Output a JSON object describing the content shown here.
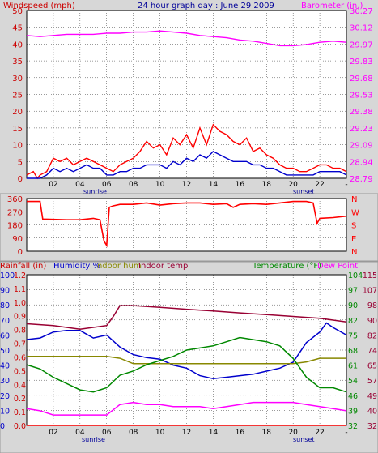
{
  "header": {
    "title": "24 hour graph day : June 29 2009",
    "left_label": "Windspeed (mph)",
    "right_label": "Barometer (in.)"
  },
  "colors": {
    "background": "#d7d7d7",
    "plot_bg": "#ffffff",
    "wind": "#ff0000",
    "gust": "#ff0000",
    "avg_wind": "#0000cc",
    "barometer": "#ff00ff",
    "direction": "#ff0000",
    "rain": "#ff0000",
    "humidity": "#0000cc",
    "indoor_hum": "#888800",
    "indoor_temp": "#990033",
    "temperature": "#008800",
    "dew_point": "#ff00ff",
    "left_text": "#cc0000",
    "blue_text": "#0000cc"
  },
  "hour_labels": [
    "02",
    "04",
    "06",
    "08",
    "10",
    "12",
    "14",
    "16",
    "18",
    "20",
    "22",
    "-"
  ],
  "sunrise_label": "sunrise",
  "sunset_label": "sunset",
  "labels3": {
    "rainfall": "Rainfall (in)",
    "humidity": "Humidity %",
    "indoor_hum": "Indoor hum",
    "indoor_temp": "Indoor temp",
    "temperature": "Temperature (°F)",
    "dew_point": "Dew Point"
  },
  "chart_data": [
    {
      "type": "line",
      "xlabel": "",
      "x_unit": "hour",
      "xlim": [
        0,
        24
      ],
      "left_axis": {
        "label": "Windspeed (mph)",
        "ylim": [
          0,
          50
        ],
        "ticks": [
          0,
          5,
          10,
          15,
          20,
          25,
          30,
          35,
          40,
          45,
          50
        ]
      },
      "right_axis": {
        "label": "Barometer (in.)",
        "ylim": [
          28.79,
          30.27
        ],
        "ticks": [
          "28.79",
          "28.94",
          "29.09",
          "29.23",
          "29.38",
          "29.53",
          "29.68",
          "29.83",
          "29.97",
          "30.12",
          "30.27"
        ]
      },
      "series": [
        {
          "name": "Windspeed (mph)",
          "axis": "left",
          "x": [
            0,
            0.5,
            0.8,
            1,
            1.5,
            2,
            2.5,
            3,
            3.5,
            4,
            4.5,
            5,
            5.5,
            6,
            6.5,
            7,
            7.5,
            8,
            8.5,
            9,
            9.5,
            10,
            10.5,
            11,
            11.5,
            12,
            12.5,
            13,
            13.5,
            14,
            14.5,
            15,
            15.5,
            16,
            16.5,
            17,
            17.5,
            18,
            18.5,
            19,
            19.5,
            20,
            20.5,
            21,
            21.5,
            22,
            22.5,
            23,
            23.5,
            24
          ],
          "y": [
            1,
            2,
            0,
            1,
            2,
            6,
            5,
            6,
            4,
            5,
            6,
            5,
            4,
            3,
            2,
            4,
            5,
            6,
            8,
            11,
            9,
            10,
            7,
            12,
            10,
            13,
            9,
            15,
            10,
            16,
            14,
            13,
            11,
            10,
            12,
            8,
            9,
            7,
            6,
            4,
            3,
            3,
            2,
            2,
            3,
            4,
            4,
            3,
            3,
            2
          ]
        },
        {
          "name": "Avg wind",
          "axis": "left",
          "x": [
            0,
            0.5,
            1,
            1.5,
            2,
            2.5,
            3,
            3.5,
            4,
            4.5,
            5,
            5.5,
            6,
            6.5,
            7,
            7.5,
            8,
            8.5,
            9,
            9.5,
            10,
            10.5,
            11,
            11.5,
            12,
            12.5,
            13,
            13.5,
            14,
            14.5,
            15,
            15.5,
            16,
            16.5,
            17,
            17.5,
            18,
            18.5,
            19,
            19.5,
            20,
            20.5,
            21,
            21.5,
            22,
            22.5,
            23,
            23.5,
            24
          ],
          "y": [
            0,
            0,
            0,
            1,
            3,
            2,
            3,
            2,
            3,
            4,
            3,
            3,
            1,
            1,
            2,
            2,
            3,
            3,
            4,
            4,
            4,
            3,
            5,
            4,
            6,
            5,
            7,
            6,
            8,
            7,
            6,
            5,
            5,
            5,
            4,
            4,
            3,
            3,
            2,
            1,
            1,
            1,
            1,
            1,
            2,
            2,
            2,
            2,
            1
          ]
        },
        {
          "name": "Barometer (in.)",
          "axis": "right",
          "x": [
            0,
            1,
            2,
            3,
            4,
            5,
            6,
            7,
            8,
            9,
            10,
            11,
            12,
            13,
            14,
            15,
            16,
            17,
            18,
            19,
            20,
            21,
            22,
            23,
            24
          ],
          "y": [
            30.05,
            30.04,
            30.05,
            30.06,
            30.06,
            30.06,
            30.07,
            30.07,
            30.08,
            30.08,
            30.09,
            30.08,
            30.07,
            30.05,
            30.04,
            30.03,
            30.01,
            30.0,
            29.98,
            29.96,
            29.96,
            29.97,
            29.99,
            30.0,
            29.99
          ]
        }
      ]
    },
    {
      "type": "line",
      "xlabel": "",
      "xlim": [
        0,
        24
      ],
      "left_axis": {
        "ylim": [
          0,
          360
        ],
        "ticks": [
          0,
          90,
          180,
          270,
          360
        ]
      },
      "right_axis": {
        "ticks": [
          "N",
          "E",
          "S",
          "W",
          "N"
        ]
      },
      "series": [
        {
          "name": "Wind direction",
          "x": [
            0,
            1,
            1.2,
            3,
            4,
            5,
            5.5,
            5.8,
            6,
            6.2,
            6.5,
            7,
            8,
            9,
            10,
            11,
            12,
            13,
            14,
            15,
            15.5,
            16,
            17,
            18,
            19,
            20,
            21,
            21.5,
            21.8,
            22,
            23,
            24
          ],
          "y": [
            340,
            340,
            220,
            215,
            215,
            225,
            215,
            70,
            40,
            300,
            310,
            320,
            320,
            330,
            315,
            325,
            330,
            330,
            320,
            325,
            300,
            320,
            325,
            320,
            330,
            340,
            340,
            330,
            190,
            225,
            230,
            240
          ]
        }
      ]
    },
    {
      "type": "line",
      "xlabel": "",
      "xlim": [
        0,
        24
      ],
      "axes": {
        "rainfall": {
          "label": "Rainfall (in)",
          "ylim": [
            0,
            1.2
          ],
          "ticks": [
            "0.0",
            "0.1",
            "0.2",
            "0.4",
            "0.5",
            "0.6",
            "0.7",
            "0.8",
            "0.9",
            "1.0",
            "1.1",
            "1.2"
          ]
        },
        "humidity": {
          "label": "Humidity %",
          "ylim": [
            0,
            100
          ],
          "ticks": [
            0,
            10,
            20,
            30,
            40,
            50,
            60,
            70,
            80,
            90,
            100
          ]
        },
        "indoor": {
          "ticks": [
            32,
            40,
            49,
            57,
            65,
            74,
            82,
            90,
            98,
            107,
            115
          ]
        },
        "temperature": {
          "label": "Temperature (°F)",
          "ylim": [
            32,
            104
          ],
          "ticks": [
            32,
            39,
            46,
            54,
            61,
            68,
            75,
            82,
            90,
            97,
            104
          ]
        }
      },
      "series": [
        {
          "name": "Humidity %",
          "axis": "humidity",
          "x": [
            0,
            1,
            2,
            3,
            4,
            5,
            6,
            7,
            8,
            9,
            10,
            11,
            12,
            13,
            14,
            15,
            16,
            17,
            18,
            19,
            20,
            21,
            22,
            22.5,
            23,
            24
          ],
          "y": [
            57,
            58,
            62,
            63,
            63,
            58,
            60,
            52,
            47,
            45,
            44,
            40,
            38,
            33,
            31,
            32,
            33,
            34,
            36,
            38,
            42,
            55,
            62,
            68,
            65,
            60
          ]
        },
        {
          "name": "Indoor hum",
          "axis": "indoor",
          "x": [
            0,
            2,
            4,
            6,
            7,
            8,
            10,
            12,
            14,
            16,
            18,
            20,
            21,
            22,
            24
          ],
          "y": [
            70,
            70,
            70,
            70,
            69,
            66,
            66,
            66,
            66,
            66,
            66,
            66,
            67,
            69,
            69
          ]
        },
        {
          "name": "Indoor temp",
          "axis": "indoor",
          "x": [
            0,
            2,
            4,
            6,
            6.5,
            7,
            8,
            10,
            12,
            14,
            16,
            18,
            20,
            22,
            24
          ],
          "y": [
            88,
            87,
            85,
            87,
            92,
            98,
            98,
            97,
            96,
            95,
            94,
            93,
            92,
            91,
            89
          ]
        },
        {
          "name": "Temperature (°F)",
          "axis": "temperature",
          "x": [
            0,
            1,
            2,
            3,
            4,
            5,
            6,
            7,
            8,
            9,
            10,
            11,
            12,
            13,
            14,
            15,
            16,
            17,
            18,
            19,
            20,
            21,
            22,
            23,
            24
          ],
          "y": [
            61,
            59,
            55,
            52,
            49,
            48,
            50,
            56,
            58,
            61,
            63,
            65,
            68,
            69,
            70,
            72,
            74,
            73,
            72,
            70,
            64,
            55,
            50,
            50,
            48
          ]
        },
        {
          "name": "Dew Point",
          "axis": "temperature",
          "x": [
            0,
            1,
            2,
            3,
            4,
            5,
            6,
            7,
            8,
            9,
            10,
            11,
            12,
            13,
            14,
            15,
            16,
            17,
            18,
            19,
            20,
            21,
            22,
            23,
            24
          ],
          "y": [
            40,
            39,
            37,
            37,
            37,
            37,
            37,
            42,
            43,
            42,
            42,
            41,
            41,
            41,
            40,
            41,
            42,
            43,
            43,
            43,
            43,
            42,
            41,
            40,
            39
          ]
        },
        {
          "name": "Rainfall (in)",
          "axis": "rainfall",
          "x": [
            0,
            24
          ],
          "y": [
            0,
            0
          ]
        }
      ]
    }
  ]
}
